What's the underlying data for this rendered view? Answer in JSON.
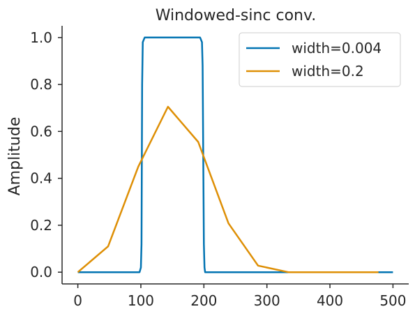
{
  "chart_data": {
    "type": "line",
    "title": "Windowed-sinc conv.",
    "xlabel": "",
    "ylabel": "Amplitude",
    "xlim": [
      -25,
      525
    ],
    "ylim": [
      -0.05,
      1.05
    ],
    "xticks": [
      0,
      100,
      200,
      300,
      400,
      500
    ],
    "yticks": [
      0.0,
      0.2,
      0.4,
      0.6,
      0.8,
      1.0
    ],
    "xtick_labels": [
      "0",
      "100",
      "200",
      "300",
      "400",
      "500"
    ],
    "ytick_labels": [
      "0.0",
      "0.2",
      "0.4",
      "0.6",
      "0.8",
      "1.0"
    ],
    "grid": false,
    "legend_position": "top-right",
    "series": [
      {
        "name": "width=0.004",
        "color": "#0173b2",
        "x": [
          0,
          98,
          100,
          101,
          102,
          103,
          106,
          194,
          197,
          198,
          199,
          200,
          201,
          202,
          500
        ],
        "y": [
          0.0,
          0.0,
          0.02,
          0.12,
          0.8,
          0.98,
          1.0,
          1.0,
          0.98,
          0.88,
          0.5,
          0.12,
          0.02,
          0.0,
          0.0
        ]
      },
      {
        "name": "width=0.2",
        "color": "#de8f05",
        "x": [
          0,
          48,
          96,
          143,
          191,
          239,
          286,
          334,
          381,
          429,
          477
        ],
        "y": [
          0.0,
          0.11,
          0.45,
          0.705,
          0.555,
          0.208,
          0.028,
          0.0,
          0.0,
          0.0,
          0.0
        ]
      }
    ]
  }
}
